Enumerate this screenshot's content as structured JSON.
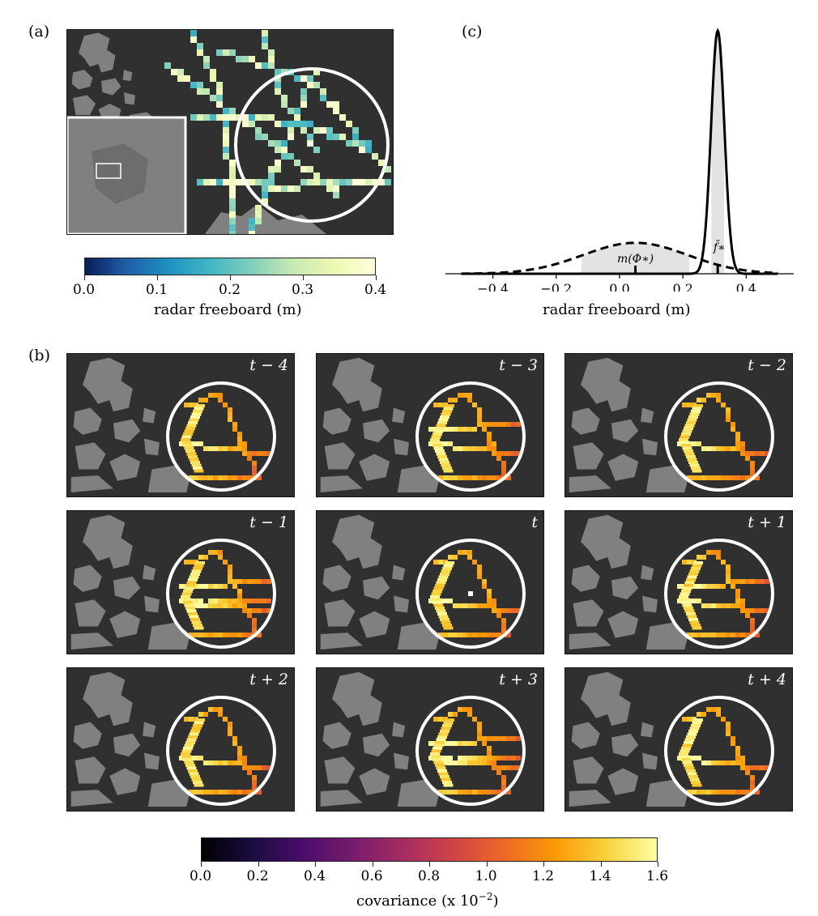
{
  "panel_labels": {
    "a": "(a)",
    "b": "(b)",
    "c": "(c)"
  },
  "colorbar_a": {
    "label": "radar freeboard (m)",
    "ticks": [
      "0.0",
      "0.1",
      "0.2",
      "0.3",
      "0.4"
    ],
    "range": [
      0,
      0.4
    ],
    "colormap": "YlGnBu",
    "colors": [
      "#081d58",
      "#225ea8",
      "#1d91c0",
      "#41b6c4",
      "#7fcdbb",
      "#c7e9b4",
      "#edf8b1",
      "#ffffd9"
    ]
  },
  "colorbar_b": {
    "label": "covariance (x 10",
    "label_exponent": "−2",
    "label_close": ")",
    "ticks": [
      "0.0",
      "0.2",
      "0.4",
      "0.6",
      "0.8",
      "1.0",
      "1.2",
      "1.4",
      "1.6"
    ],
    "range": [
      0,
      1.6
    ],
    "colormap": "inferno",
    "colors": [
      "#000004",
      "#1b0c41",
      "#4a0c6b",
      "#781c6d",
      "#a52c60",
      "#cf4446",
      "#ed6925",
      "#fb9b06",
      "#f7d13d",
      "#fcffa4"
    ]
  },
  "map_colors": {
    "ocean": "#303030",
    "land": "#808080",
    "circle": "#ffffff"
  },
  "panels_b": [
    {
      "label": "t − 4",
      "pattern": 0
    },
    {
      "label": "t − 3",
      "pattern": 1
    },
    {
      "label": "t − 2",
      "pattern": 2
    },
    {
      "label": "t − 1",
      "pattern": 3
    },
    {
      "label": "t",
      "pattern": 4
    },
    {
      "label": "t + 1",
      "pattern": 5
    },
    {
      "label": "t + 2",
      "pattern": 6
    },
    {
      "label": "t + 3",
      "pattern": 7
    },
    {
      "label": "t + 4",
      "pattern": 8
    }
  ],
  "chart_data": {
    "type": "line",
    "xlabel": "radar freeboard (m)",
    "xticks": [
      "−0.4",
      "−0.2",
      "0.0",
      "0.2",
      "0.4"
    ],
    "xlim": [
      -0.55,
      0.55
    ],
    "series": [
      {
        "style": "dashed",
        "distribution": "gaussian",
        "mean": 0.05,
        "std": 0.165,
        "x_range": [
          -0.5,
          0.5
        ]
      },
      {
        "style": "solid",
        "distribution": "gaussian",
        "mean": 0.31,
        "std": 0.021,
        "x_range": [
          -0.5,
          0.5
        ]
      }
    ],
    "annotations": [
      {
        "text": "m(Φ∗)",
        "x": 0.05,
        "shaded_interval": [
          -0.12,
          0.22
        ]
      },
      {
        "text": "f̄∗",
        "x": 0.31,
        "shaded_interval": [
          0.29,
          0.33
        ]
      }
    ]
  }
}
